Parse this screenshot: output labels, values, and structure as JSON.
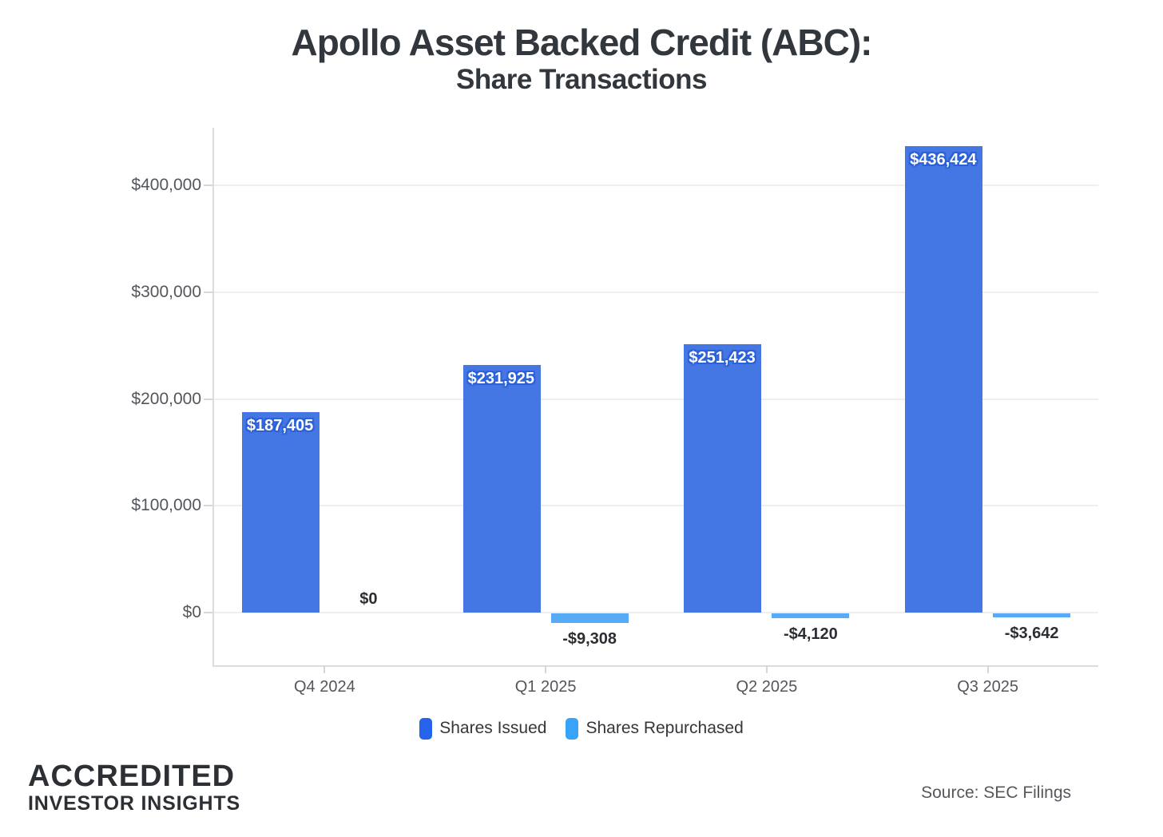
{
  "title": {
    "line1": "Apollo Asset Backed Credit (ABC):",
    "line2": "Share Transactions"
  },
  "chart_data": {
    "type": "bar",
    "categories": [
      "Q4 2024",
      "Q1 2025",
      "Q2 2025",
      "Q3 2025"
    ],
    "series": [
      {
        "name": "Shares Issued",
        "bar_color": "#4476e4",
        "values": [
          187405,
          231925,
          251423,
          436424
        ],
        "labels": [
          "$187,405",
          "$231,925",
          "$251,423",
          "$436,424"
        ]
      },
      {
        "name": "Shares Repurchased",
        "bar_color": "#57aaf5",
        "values": [
          0,
          -9308,
          -4120,
          -3642
        ],
        "labels": [
          "$0",
          "-$9,308",
          "-$4,120",
          "-$3,642"
        ]
      }
    ],
    "y_ticks": [
      {
        "value": 0,
        "label": "$0"
      },
      {
        "value": 100000,
        "label": "$100,000"
      },
      {
        "value": 200000,
        "label": "$200,000"
      },
      {
        "value": 300000,
        "label": "$300,000"
      },
      {
        "value": 400000,
        "label": "$400,000"
      }
    ],
    "ylim": [
      -49500,
      453500
    ],
    "grid": true,
    "legend_position": "bottom",
    "title": "Apollo Asset Backed Credit (ABC): Share Transactions"
  },
  "legend": {
    "items": [
      {
        "label": "Shares Issued",
        "color": "#2563eb"
      },
      {
        "label": "Shares Repurchased",
        "color": "#38a3f8"
      }
    ]
  },
  "footer": {
    "brand_line1": "ACCREDITED",
    "brand_line2": "INVESTOR INSIGHTS",
    "source": "Source: SEC Filings"
  },
  "colors": {
    "title_text": "#32373d",
    "axis_text": "#53575c",
    "gridline": "#efefef",
    "axis_border": "#dcdcdc",
    "positive_label_halo": "#2d61d8",
    "negative_label_text": "#2b2e33"
  }
}
